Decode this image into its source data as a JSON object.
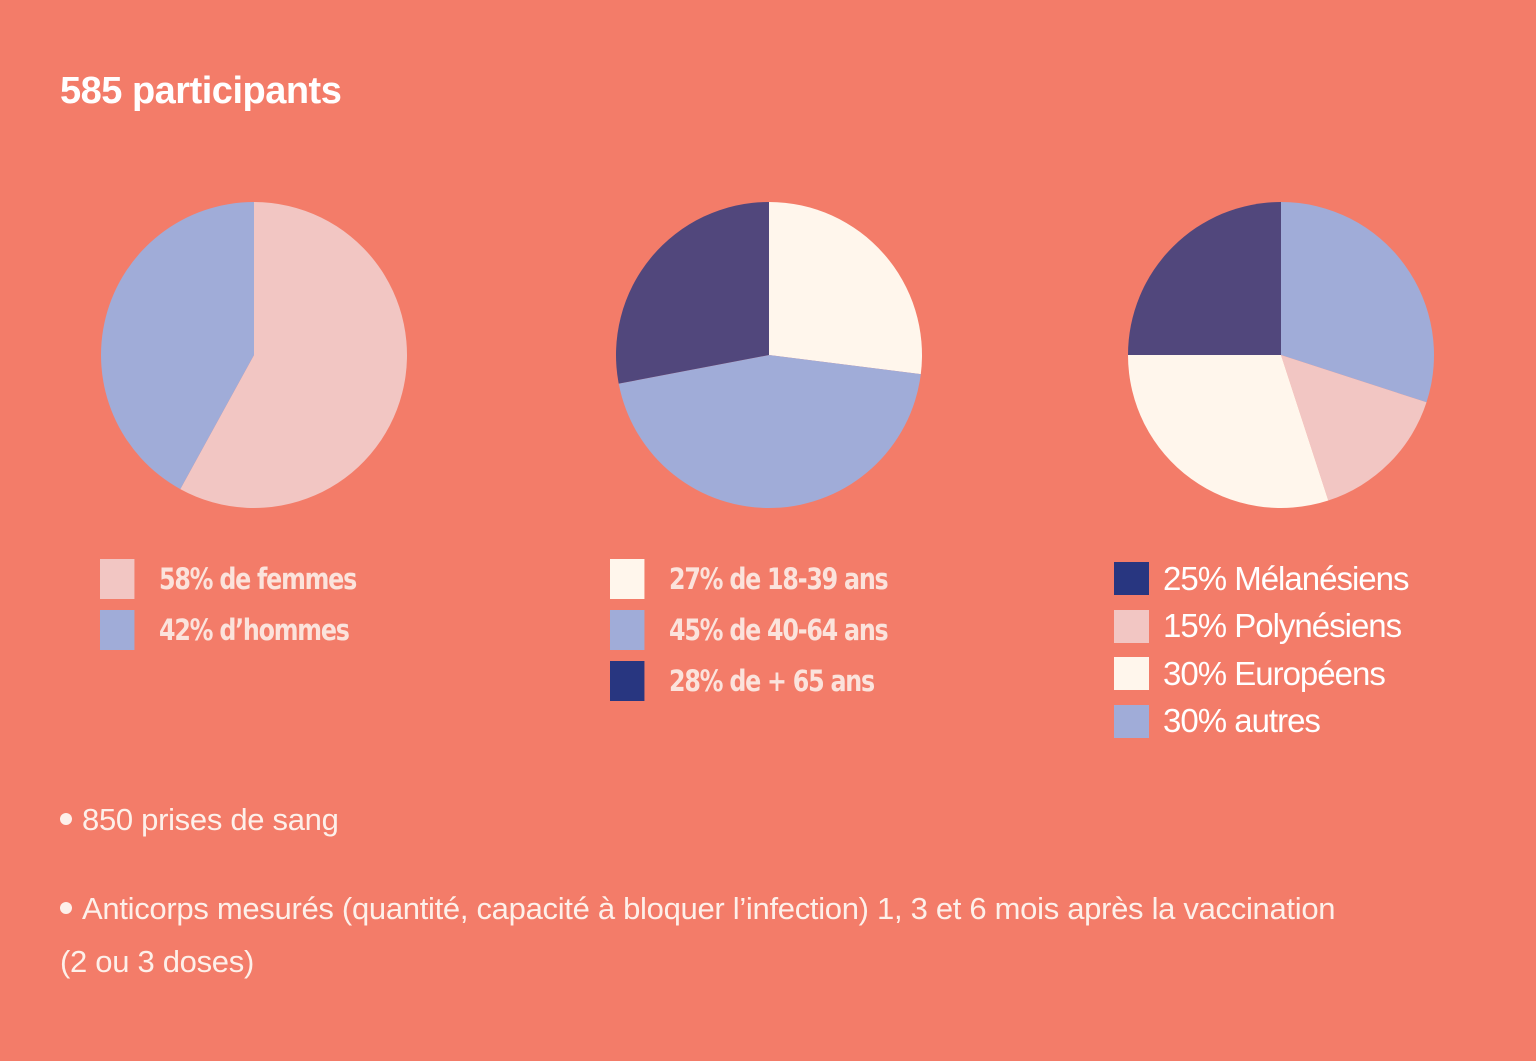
{
  "title": "585 participants",
  "colors": {
    "background": "#f37c69",
    "pink": "#f2c6c3",
    "lavender": "#a0acd8",
    "cream": "#fff6ec",
    "dark_purple": "#51477c",
    "navy": "#283680"
  },
  "chart_data": [
    {
      "type": "pie",
      "slices": [
        {
          "label": "58% de femmes",
          "value": 58,
          "color": "#f2c6c3"
        },
        {
          "label": "42% d’hommes",
          "value": 42,
          "color": "#a0acd8"
        }
      ]
    },
    {
      "type": "pie",
      "slices": [
        {
          "label": "27% de 18-39 ans",
          "value": 27,
          "color": "#fff6ec"
        },
        {
          "label": "45% de 40-64 ans",
          "value": 45,
          "color": "#a0acd8"
        },
        {
          "label": "28% de + 65 ans",
          "value": 28,
          "color": "#51477c",
          "legend_color": "#283680"
        }
      ]
    },
    {
      "type": "pie",
      "slices": [
        {
          "label": "30% autres",
          "value": 30,
          "color": "#a0acd8"
        },
        {
          "label": "15% Polynésiens",
          "value": 15,
          "color": "#f2c6c3"
        },
        {
          "label": "30% Européens",
          "value": 30,
          "color": "#fff6ec"
        },
        {
          "label": "25% Mélanésiens",
          "value": 25,
          "color": "#51477c",
          "legend_color": "#283680"
        }
      ],
      "legend_order": [
        "25% Mélanésiens",
        "15% Polynésiens",
        "30% Européens",
        "30% autres"
      ]
    }
  ],
  "notes": [
    "850 prises de sang",
    "Anticorps mesurés (quantité, capacité à bloquer l’infection) 1, 3 et 6 mois après la vaccination",
    "(2 ou 3 doses)"
  ]
}
